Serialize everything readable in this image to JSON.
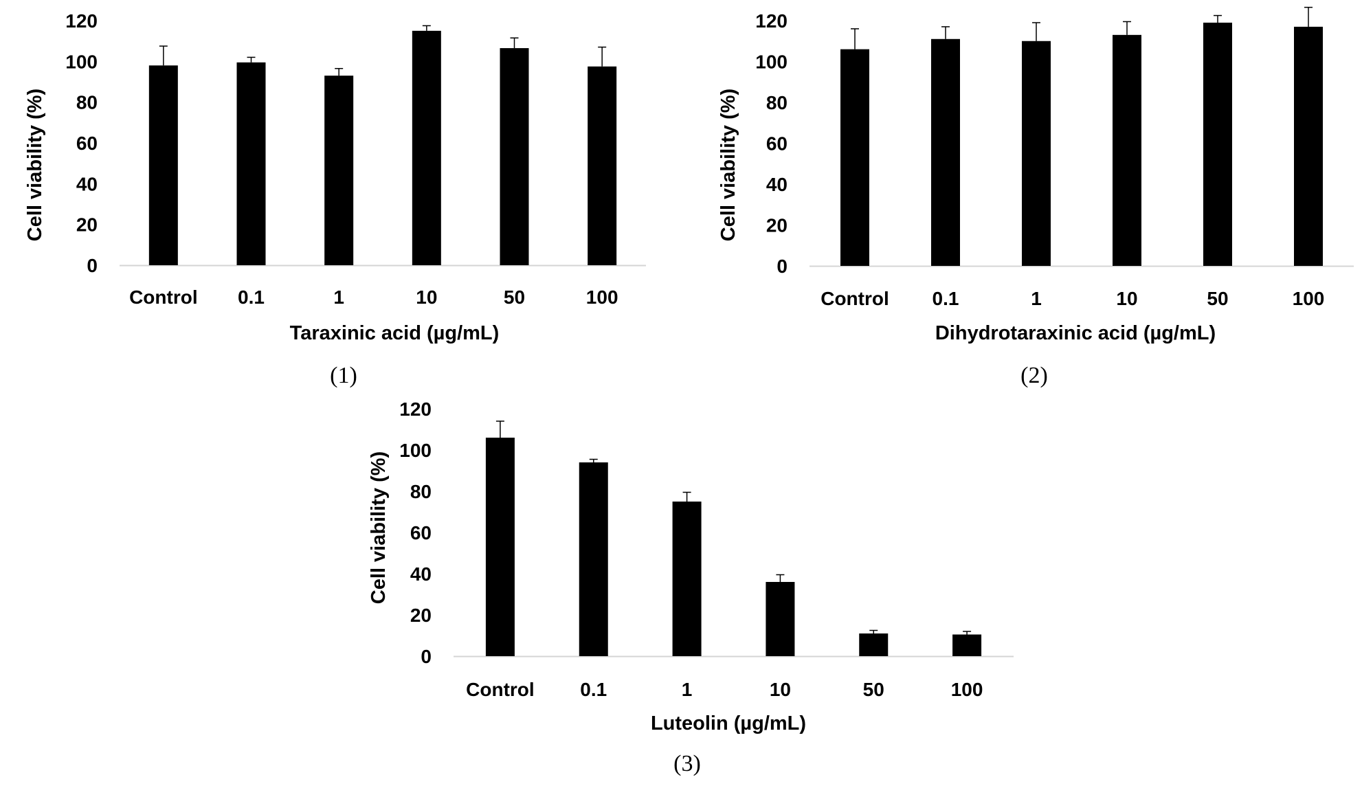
{
  "chart_data": [
    {
      "panel_label": "(1)",
      "type": "bar",
      "categories": [
        "Control",
        "0.1",
        "1",
        "10",
        "50",
        "100"
      ],
      "values": [
        98,
        99.5,
        93,
        115,
        106.5,
        97.5
      ],
      "errors": [
        9.5,
        2.5,
        3.5,
        2.5,
        5,
        9.5
      ],
      "xlabel": "Taraxinic acid (µg/mL)",
      "ylabel": "Cell viability (%)",
      "yticks": [
        "0",
        "20",
        "40",
        "60",
        "80",
        "100",
        "120"
      ],
      "ylim": [
        0,
        120
      ],
      "grid": false,
      "bar_color": "#000000"
    },
    {
      "panel_label": "(2)",
      "type": "bar",
      "categories": [
        "Control",
        "0.1",
        "1",
        "10",
        "50",
        "100"
      ],
      "values": [
        106,
        111,
        110,
        113,
        119,
        117
      ],
      "errors": [
        10,
        6,
        9,
        6.5,
        3.5,
        9.5
      ],
      "xlabel": "Dihydrotaraxinic acid (µg/mL)",
      "ylabel": "Cell viability (%)",
      "yticks": [
        "0",
        "20",
        "40",
        "60",
        "80",
        "100",
        "120"
      ],
      "ylim": [
        0,
        120
      ],
      "grid": false,
      "bar_color": "#000000"
    },
    {
      "panel_label": "(3)",
      "type": "bar",
      "categories": [
        "Control",
        "0.1",
        "1",
        "10",
        "50",
        "100"
      ],
      "values": [
        106,
        94,
        75,
        36,
        11,
        10.5
      ],
      "errors": [
        8,
        1.5,
        4.5,
        3.5,
        1.5,
        1.5
      ],
      "xlabel": "Luteolin (µg/mL)",
      "ylabel": "Cell viability (%)",
      "yticks": [
        "0",
        "20",
        "40",
        "60",
        "80",
        "100",
        "120"
      ],
      "ylim": [
        0,
        120
      ],
      "grid": false,
      "bar_color": "#000000"
    }
  ]
}
